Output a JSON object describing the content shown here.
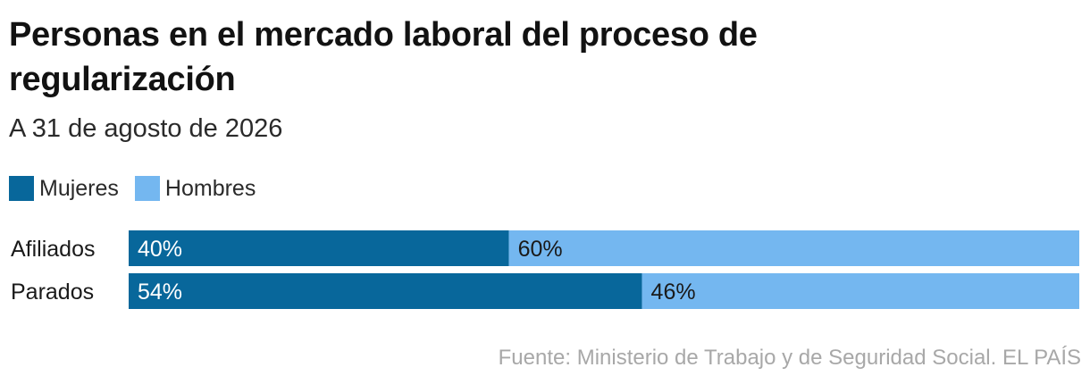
{
  "title": "Personas en el mercado laboral del proceso de regularización",
  "subtitle": "A 31 de agosto de 2026",
  "source": "Fuente: Ministerio de Trabajo y de Seguridad Social. EL PAÍS",
  "colors": {
    "mujeres": "#08679b",
    "hombres": "#74b7f0"
  },
  "chart_data": {
    "type": "bar",
    "orientation": "horizontal",
    "stacked": true,
    "normalized": "percent",
    "categories": [
      "Afiliados",
      "Parados"
    ],
    "series": [
      {
        "name": "Mujeres",
        "values": [
          40,
          54
        ],
        "labels": [
          "40%",
          "54%"
        ],
        "color": "#08679b"
      },
      {
        "name": "Hombres",
        "values": [
          60,
          46
        ],
        "labels": [
          "60%",
          "46%"
        ],
        "color": "#74b7f0"
      }
    ],
    "xlim": [
      0,
      100
    ],
    "grid": false,
    "legend": "top-left",
    "title": "Personas en el mercado laboral del proceso de regularización",
    "subtitle": "A 31 de agosto de 2026"
  }
}
